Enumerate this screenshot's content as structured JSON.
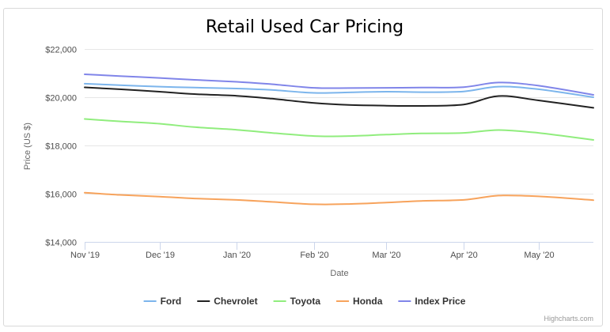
{
  "chart_data": {
    "type": "line",
    "title": "Retail Used Car Pricing",
    "xlabel": "Date",
    "ylabel": "Price (US $)",
    "x_start": "2019-11-01",
    "x_end": "2020-05-23",
    "x_ticks": [
      "Nov '19",
      "Dec '19",
      "Jan '20",
      "Feb '20",
      "Mar '20",
      "Apr '20",
      "May '20"
    ],
    "ylim": [
      14000,
      22000
    ],
    "y_ticks": [
      "$14,000",
      "$16,000",
      "$18,000",
      "$20,000",
      "$22,000"
    ],
    "grid": "horizontal",
    "legend_position": "bottom-center",
    "credits": "Highcharts.com",
    "dates": [
      "2019-11-01",
      "2019-11-15",
      "2019-12-01",
      "2019-12-15",
      "2020-01-01",
      "2020-01-15",
      "2020-02-01",
      "2020-02-15",
      "2020-03-01",
      "2020-03-15",
      "2020-04-01",
      "2020-04-15",
      "2020-05-01",
      "2020-05-23"
    ],
    "series": [
      {
        "name": "Ford",
        "color": "#7cb5ec",
        "values": [
          20560,
          20500,
          20440,
          20400,
          20360,
          20300,
          20180,
          20200,
          20230,
          20210,
          20240,
          20440,
          20330,
          20000
        ]
      },
      {
        "name": "Chevrolet",
        "color": "#222222",
        "values": [
          20410,
          20330,
          20230,
          20130,
          20060,
          19940,
          19760,
          19680,
          19650,
          19640,
          19700,
          20050,
          19870,
          19560
        ]
      },
      {
        "name": "Toyota",
        "color": "#90ed7d",
        "values": [
          19100,
          19000,
          18900,
          18760,
          18650,
          18520,
          18390,
          18390,
          18450,
          18500,
          18520,
          18640,
          18520,
          18230
        ]
      },
      {
        "name": "Honda",
        "color": "#f7a35c",
        "values": [
          16040,
          15950,
          15880,
          15800,
          15740,
          15660,
          15560,
          15570,
          15630,
          15700,
          15740,
          15920,
          15890,
          15730
        ]
      },
      {
        "name": "Index Price",
        "color": "#8085e9",
        "values": [
          20950,
          20880,
          20800,
          20720,
          20640,
          20540,
          20390,
          20380,
          20390,
          20400,
          20420,
          20610,
          20480,
          20100
        ]
      }
    ]
  }
}
